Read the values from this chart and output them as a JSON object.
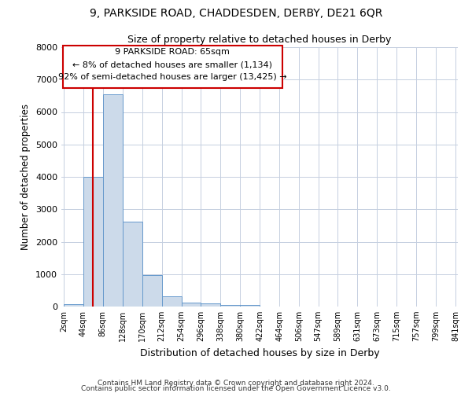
{
  "title": "9, PARKSIDE ROAD, CHADDESDEN, DERBY, DE21 6QR",
  "subtitle": "Size of property relative to detached houses in Derby",
  "xlabel": "Distribution of detached houses by size in Derby",
  "ylabel": "Number of detached properties",
  "bar_color": "#ccdaea",
  "bar_edge_color": "#6699cc",
  "background_color": "#ffffff",
  "grid_color": "#c5cfe0",
  "property_size": 65,
  "annotation_title": "9 PARKSIDE ROAD: 65sqm",
  "annotation_line1": "← 8% of detached houses are smaller (1,134)",
  "annotation_line2": "92% of semi-detached houses are larger (13,425) →",
  "red_line_color": "#cc0000",
  "annotation_box_color": "#ffffff",
  "annotation_box_edge": "#cc0000",
  "bin_edges": [
    2,
    44,
    86,
    128,
    170,
    212,
    254,
    296,
    338,
    380,
    422,
    464,
    506,
    547,
    589,
    631,
    673,
    715,
    757,
    799,
    841
  ],
  "bin_values": [
    80,
    4000,
    6550,
    2620,
    960,
    320,
    130,
    90,
    60,
    50,
    10,
    0,
    0,
    0,
    0,
    0,
    0,
    0,
    0,
    0
  ],
  "ylim": [
    0,
    8000
  ],
  "yticks": [
    0,
    1000,
    2000,
    3000,
    4000,
    5000,
    6000,
    7000,
    8000
  ],
  "footer_line1": "Contains HM Land Registry data © Crown copyright and database right 2024.",
  "footer_line2": "Contains public sector information licensed under the Open Government Licence v3.0."
}
